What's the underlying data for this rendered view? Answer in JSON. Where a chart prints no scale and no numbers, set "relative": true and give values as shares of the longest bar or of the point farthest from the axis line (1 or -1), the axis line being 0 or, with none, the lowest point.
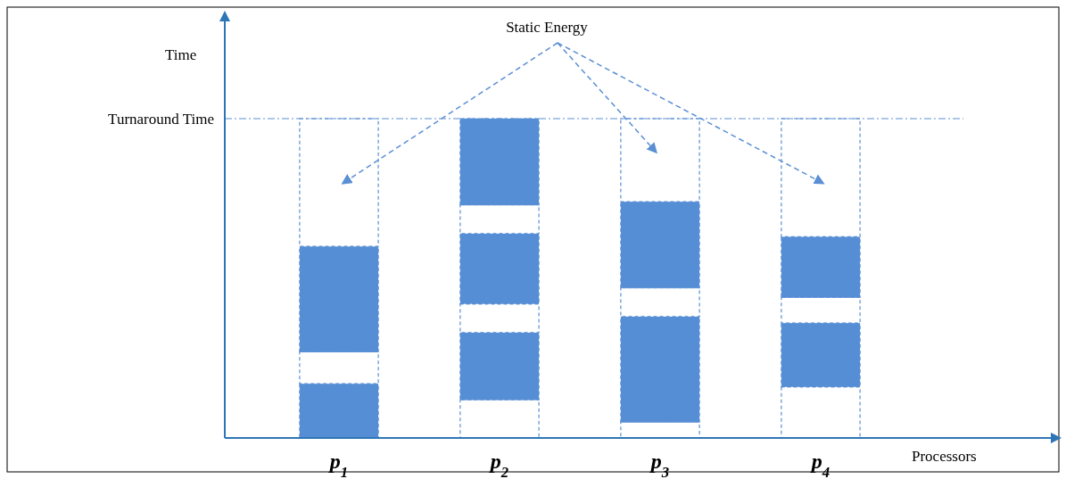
{
  "chart_data": {
    "type": "bar",
    "relative": true,
    "stacked": true,
    "xlabel": "Processors",
    "categories": [
      "p$_{1}$",
      "p$_{2}$",
      "p$_{3}$",
      "p$_{4}$"
    ],
    "series": [
      {
        "color": "#ffffff",
        "values": [
          null,
          0.12,
          0.05,
          0.16
        ]
      },
      {
        "color": "#558ed5",
        "values": [
          0.17,
          0.21,
          0.33,
          0.2
        ]
      },
      {
        "color": "#ffffff",
        "values": [
          0.1,
          0.09,
          0.09,
          0.08
        ]
      },
      {
        "color": "#558ed5",
        "values": [
          0.33,
          0.22,
          0.27,
          0.19
        ]
      },
      {
        "color": "#ffffff",
        "values": [
          null,
          0.09,
          null,
          null
        ]
      },
      {
        "color": "#558ed5",
        "values": [
          null,
          0.27,
          null,
          null
        ]
      },
      {
        "color": "#ffffff",
        "values": [
          0.4,
          null,
          0.26,
          0.37
        ]
      }
    ],
    "ref_lines": [
      {
        "axis": "y",
        "value": 1,
        "label": "Turnaround Time",
        "line_style": "dashdot",
        "color": "#5b8fd4"
      }
    ],
    "annotations": [
      "Static Energy",
      "Time"
    ]
  }
}
